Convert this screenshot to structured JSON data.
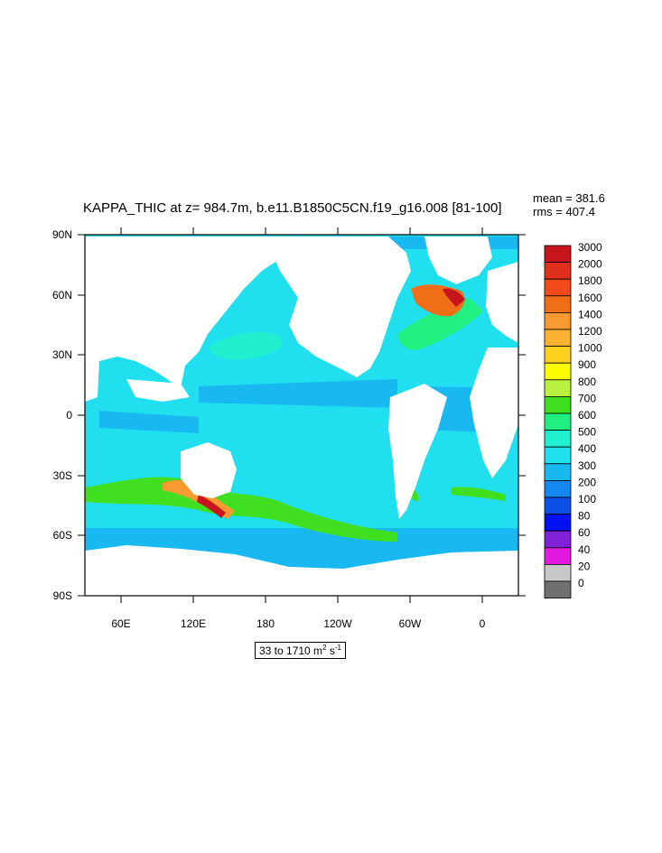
{
  "title": "KAPPA_THIC at z= 984.7m, b.e11.B1850C5CN.f19_g16.008 [81-100]",
  "stats": {
    "mean": "mean = 381.6",
    "rms": "rms = 407.4"
  },
  "units": {
    "range": "33 to 1710 m",
    "exp1": "2",
    "mid": " s",
    "exp2": "-1"
  },
  "chart_data": {
    "type": "heatmap",
    "title": "KAPPA_THIC at z= 984.7m, b.e11.B1850C5CN.f19_g16.008 [81-100]",
    "x_ticks": [
      "60E",
      "120E",
      "180",
      "120W",
      "60W",
      "0"
    ],
    "y_ticks": [
      "90N",
      "60N",
      "30N",
      "0",
      "30S",
      "60S",
      "90S"
    ],
    "mean": 381.6,
    "rms": 407.4,
    "min": 33,
    "max": 1710,
    "colorbar": {
      "labels": [
        "3000",
        "2000",
        "1800",
        "1600",
        "1400",
        "1200",
        "1000",
        "900",
        "800",
        "700",
        "600",
        "500",
        "400",
        "300",
        "200",
        "100",
        "80",
        "60",
        "40",
        "20",
        "0"
      ],
      "colors": [
        "#c8141c",
        "#e0301c",
        "#f24a1a",
        "#f06e18",
        "#f89a30",
        "#fcb230",
        "#fdd020",
        "#fcfc00",
        "#b8f040",
        "#40e020",
        "#20f080",
        "#20f0d0",
        "#20e0f0",
        "#18b8f0",
        "#1488f0",
        "#0c50e8",
        "#0010f0",
        "#8020d8",
        "#e018e0",
        "#c8c8c8",
        "#707070"
      ]
    },
    "grid": false
  }
}
